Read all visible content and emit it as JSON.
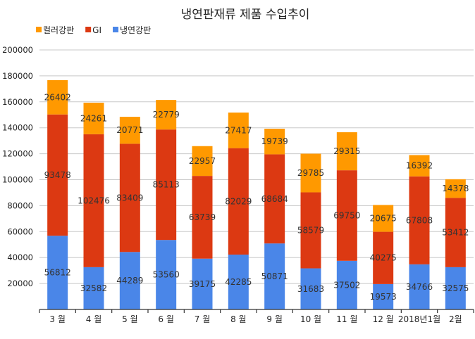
{
  "chart_data": {
    "type": "bar",
    "stacked": true,
    "title": "냉연판재류 제품 수입추이",
    "xlabel": "",
    "ylabel": "",
    "ylim": [
      0,
      200000
    ],
    "yticks": [
      20000,
      40000,
      60000,
      80000,
      100000,
      120000,
      140000,
      160000,
      180000,
      200000
    ],
    "ytick_labels": [
      "20000",
      "40000",
      "60000",
      "80000",
      "100000",
      "120000",
      "140000",
      "160000",
      "180000",
      "200000"
    ],
    "grid": true,
    "legend_position": "top-left",
    "legend": [
      "컬러강판",
      "GI",
      "냉연강판"
    ],
    "categories": [
      "3 월",
      "4 월",
      "5 월",
      "6 월",
      "7 월",
      "8 월",
      "9 월",
      "10 월",
      "11 월",
      "12 월",
      "2018년1월",
      "2월"
    ],
    "series": [
      {
        "name": "냉연강판",
        "color": "#4a86e8",
        "values": [
          56812,
          32582,
          44289,
          53560,
          39175,
          42285,
          50871,
          31683,
          37502,
          19573,
          34766,
          32575
        ]
      },
      {
        "name": "GI",
        "color": "#dc3912",
        "values": [
          93478,
          102476,
          83409,
          85113,
          63739,
          82029,
          68684,
          58579,
          69750,
          40275,
          67808,
          53412
        ]
      },
      {
        "name": "컬러강판",
        "color": "#ff9900",
        "values": [
          26402,
          24261,
          20771,
          22779,
          22957,
          27417,
          19739,
          29785,
          29315,
          20675,
          16392,
          14378
        ]
      }
    ],
    "data_labels": true
  }
}
